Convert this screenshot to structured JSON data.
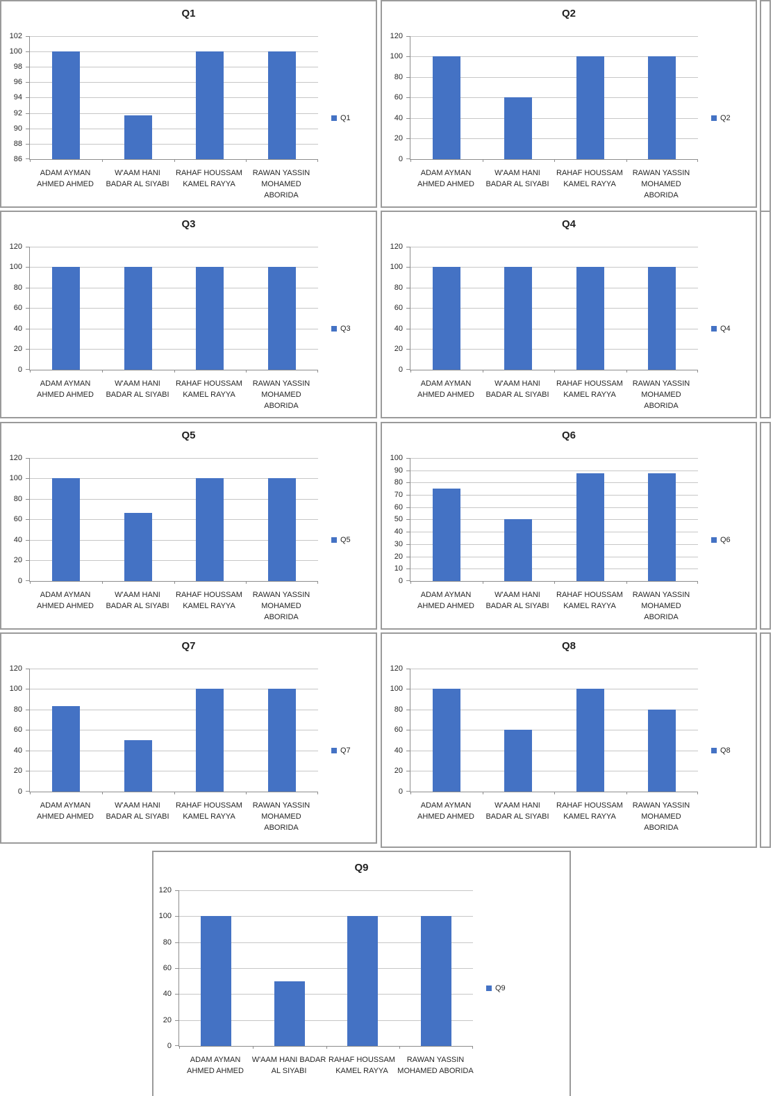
{
  "colors": {
    "bar": "#4472C4",
    "gridline": "#C6C6C6",
    "axis": "#8C8C8C",
    "panel_border": "#9A9A9A",
    "text": "#262626",
    "title_text": "#1F1F1F"
  },
  "chart_data": [
    {
      "type": "bar",
      "title": "Q1",
      "legend": "Q1",
      "categories": [
        "ADAM AYMAN AHMED AHMED",
        "W'AAM HANI BADAR AL SIYABI",
        "RAHAF HOUSSAM KAMEL RAYYA",
        "RAWAN YASSIN MOHAMED ABORIDA"
      ],
      "cat_lines": [
        [
          "ADAM AYMAN",
          "AHMED AHMED"
        ],
        [
          "W'AAM HANI",
          "BADAR AL SIYABI"
        ],
        [
          "RAHAF HOUSSAM",
          "KAMEL RAYYA"
        ],
        [
          "RAWAN YASSIN",
          "MOHAMED",
          "ABORIDA"
        ]
      ],
      "values": [
        100,
        91.67,
        100,
        100
      ],
      "ylim": [
        86,
        102
      ],
      "yticks": [
        86,
        88,
        90,
        92,
        94,
        96,
        98,
        100,
        102
      ],
      "grid": true,
      "legend_position": "right"
    },
    {
      "type": "bar",
      "title": "Q2",
      "legend": "Q2",
      "categories": [
        "ADAM AYMAN AHMED AHMED",
        "W'AAM HANI BADAR AL SIYABI",
        "RAHAF HOUSSAM KAMEL RAYYA",
        "RAWAN YASSIN MOHAMED ABORIDA"
      ],
      "cat_lines": [
        [
          "ADAM AYMAN",
          "AHMED AHMED"
        ],
        [
          "W'AAM HANI",
          "BADAR AL SIYABI"
        ],
        [
          "RAHAF HOUSSAM",
          "KAMEL RAYYA"
        ],
        [
          "RAWAN YASSIN",
          "MOHAMED",
          "ABORIDA"
        ]
      ],
      "values": [
        100,
        60,
        100,
        100
      ],
      "ylim": [
        0,
        120
      ],
      "yticks": [
        0,
        20,
        40,
        60,
        80,
        100,
        120
      ],
      "grid": true,
      "legend_position": "right"
    },
    {
      "type": "bar",
      "title": "Q3",
      "legend": "Q3",
      "categories": [
        "ADAM AYMAN AHMED AHMED",
        "W'AAM HANI BADAR AL SIYABI",
        "RAHAF HOUSSAM KAMEL RAYYA",
        "RAWAN YASSIN MOHAMED ABORIDA"
      ],
      "cat_lines": [
        [
          "ADAM AYMAN",
          "AHMED AHMED"
        ],
        [
          "W'AAM HANI",
          "BADAR AL SIYABI"
        ],
        [
          "RAHAF HOUSSAM",
          "KAMEL RAYYA"
        ],
        [
          "RAWAN YASSIN",
          "MOHAMED",
          "ABORIDA"
        ]
      ],
      "values": [
        100,
        100,
        100,
        100
      ],
      "ylim": [
        0,
        120
      ],
      "yticks": [
        0,
        20,
        40,
        60,
        80,
        100,
        120
      ],
      "grid": true,
      "legend_position": "right"
    },
    {
      "type": "bar",
      "title": "Q4",
      "legend": "Q4",
      "categories": [
        "ADAM AYMAN AHMED AHMED",
        "W'AAM HANI BADAR AL SIYABI",
        "RAHAF HOUSSAM KAMEL RAYYA",
        "RAWAN YASSIN MOHAMED ABORIDA"
      ],
      "cat_lines": [
        [
          "ADAM AYMAN",
          "AHMED AHMED"
        ],
        [
          "W'AAM HANI",
          "BADAR AL SIYABI"
        ],
        [
          "RAHAF HOUSSAM",
          "KAMEL RAYYA"
        ],
        [
          "RAWAN YASSIN",
          "MOHAMED",
          "ABORIDA"
        ]
      ],
      "values": [
        100,
        100,
        100,
        100
      ],
      "ylim": [
        0,
        120
      ],
      "yticks": [
        0,
        20,
        40,
        60,
        80,
        100,
        120
      ],
      "grid": true,
      "legend_position": "right"
    },
    {
      "type": "bar",
      "title": "Q5",
      "legend": "Q5",
      "categories": [
        "ADAM AYMAN AHMED AHMED",
        "W'AAM HANI BADAR AL SIYABI",
        "RAHAF HOUSSAM KAMEL RAYYA",
        "RAWAN YASSIN MOHAMED ABORIDA"
      ],
      "cat_lines": [
        [
          "ADAM AYMAN",
          "AHMED AHMED"
        ],
        [
          "W'AAM HANI",
          "BADAR AL SIYABI"
        ],
        [
          "RAHAF HOUSSAM",
          "KAMEL RAYYA"
        ],
        [
          "RAWAN YASSIN",
          "MOHAMED",
          "ABORIDA"
        ]
      ],
      "values": [
        100,
        66.67,
        100,
        100
      ],
      "ylim": [
        0,
        120
      ],
      "yticks": [
        0,
        20,
        40,
        60,
        80,
        100,
        120
      ],
      "grid": true,
      "legend_position": "right"
    },
    {
      "type": "bar",
      "title": "Q6",
      "legend": "Q6",
      "categories": [
        "ADAM AYMAN AHMED AHMED",
        "W'AAM HANI BADAR AL SIYABI",
        "RAHAF HOUSSAM KAMEL RAYYA",
        "RAWAN YASSIN MOHAMED ABORIDA"
      ],
      "cat_lines": [
        [
          "ADAM AYMAN",
          "AHMED AHMED"
        ],
        [
          "W'AAM HANI",
          "BADAR AL SIYABI"
        ],
        [
          "RAHAF HOUSSAM",
          "KAMEL RAYYA"
        ],
        [
          "RAWAN YASSIN",
          "MOHAMED",
          "ABORIDA"
        ]
      ],
      "values": [
        75,
        50,
        87.5,
        87.5
      ],
      "ylim": [
        0,
        100
      ],
      "yticks": [
        0,
        10,
        20,
        30,
        40,
        50,
        60,
        70,
        80,
        90,
        100
      ],
      "grid": true,
      "legend_position": "right"
    },
    {
      "type": "bar",
      "title": "Q7",
      "legend": "Q7",
      "categories": [
        "ADAM AYMAN AHMED AHMED",
        "W'AAM HANI BADAR AL SIYABI",
        "RAHAF HOUSSAM KAMEL RAYYA",
        "RAWAN YASSIN MOHAMED ABORIDA"
      ],
      "cat_lines": [
        [
          "ADAM AYMAN",
          "AHMED AHMED"
        ],
        [
          "W'AAM HANI",
          "BADAR AL SIYABI"
        ],
        [
          "RAHAF HOUSSAM",
          "KAMEL RAYYA"
        ],
        [
          "RAWAN YASSIN",
          "MOHAMED",
          "ABORIDA"
        ]
      ],
      "values": [
        83.33,
        50,
        100,
        100
      ],
      "ylim": [
        0,
        120
      ],
      "yticks": [
        0,
        20,
        40,
        60,
        80,
        100,
        120
      ],
      "grid": true,
      "legend_position": "right"
    },
    {
      "type": "bar",
      "title": "Q8",
      "legend": "Q8",
      "categories": [
        "ADAM AYMAN AHMED AHMED",
        "W'AAM HANI BADAR AL SIYABI",
        "RAHAF HOUSSAM KAMEL RAYYA",
        "RAWAN YASSIN MOHAMED ABORIDA"
      ],
      "cat_lines": [
        [
          "ADAM AYMAN",
          "AHMED AHMED"
        ],
        [
          "W'AAM HANI",
          "BADAR AL SIYABI"
        ],
        [
          "RAHAF HOUSSAM",
          "KAMEL RAYYA"
        ],
        [
          "RAWAN YASSIN",
          "MOHAMED",
          "ABORIDA"
        ]
      ],
      "values": [
        100,
        60,
        100,
        80
      ],
      "ylim": [
        0,
        120
      ],
      "yticks": [
        0,
        20,
        40,
        60,
        80,
        100,
        120
      ],
      "grid": true,
      "legend_position": "right"
    },
    {
      "type": "bar",
      "title": "Q9",
      "legend": "Q9",
      "categories": [
        "ADAM AYMAN AHMED AHMED",
        "W'AAM HANI BADAR AL SIYABI",
        "RAHAF HOUSSAM KAMEL RAYYA",
        "RAWAN YASSIN MOHAMED ABORIDA"
      ],
      "cat_lines": [
        [
          "ADAM AYMAN",
          "AHMED AHMED"
        ],
        [
          "W'AAM HANI BADAR",
          "AL SIYABI"
        ],
        [
          "RAHAF HOUSSAM",
          "KAMEL RAYYA"
        ],
        [
          "RAWAN YASSIN",
          "MOHAMED ABORIDA"
        ]
      ],
      "values": [
        100,
        50,
        100,
        100
      ],
      "ylim": [
        0,
        120
      ],
      "yticks": [
        0,
        20,
        40,
        60,
        80,
        100,
        120
      ],
      "grid": true,
      "legend_position": "right"
    }
  ]
}
